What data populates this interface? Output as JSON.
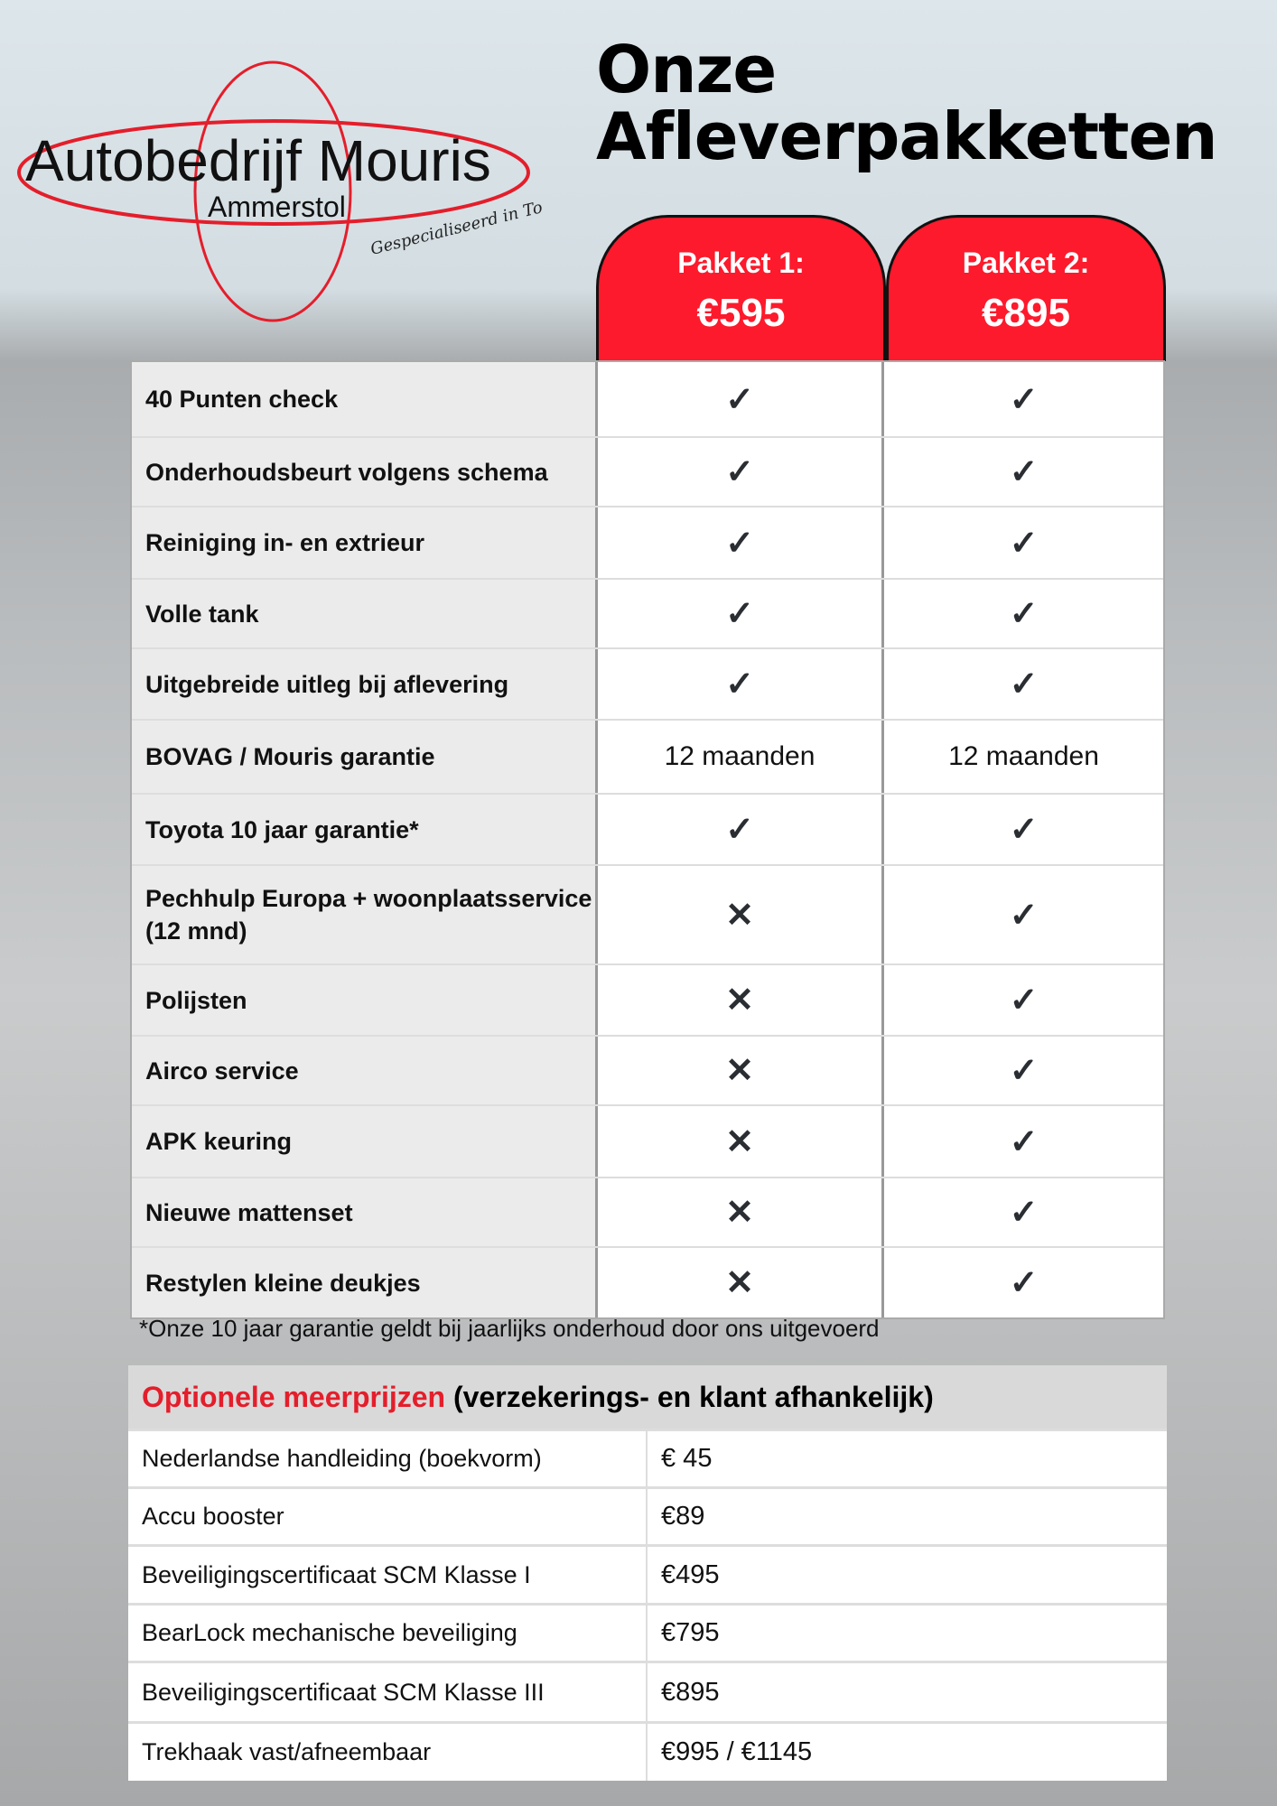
{
  "logo": {
    "name": "Autobedrijf Mouris",
    "place": "Ammerstol",
    "tagline": "Gespecialiseerd in Toyota"
  },
  "title": {
    "line1": "Onze",
    "line2": "Afleverpakketten"
  },
  "packages": [
    {
      "label": "Pakket 1:",
      "price": "€595"
    },
    {
      "label": "Pakket 2:",
      "price": "€895"
    }
  ],
  "icons": {
    "yes": "check-icon",
    "no": "cross-icon"
  },
  "colors": {
    "accent": "#fc1a2c"
  },
  "rows": [
    {
      "label": "40 Punten check",
      "p1": "✓",
      "p2": "✓"
    },
    {
      "label": "Onderhoudsbeurt volgens schema",
      "p1": "✓",
      "p2": "✓"
    },
    {
      "label": "Reiniging in- en extrieur",
      "p1": "✓",
      "p2": "✓"
    },
    {
      "label": "Volle tank",
      "p1": "✓",
      "p2": "✓"
    },
    {
      "label": "Uitgebreide uitleg bij aflevering",
      "p1": "✓",
      "p2": "✓"
    },
    {
      "label": "BOVAG / Mouris garantie",
      "p1": "12 maanden",
      "p2": "12 maanden"
    },
    {
      "label": "Toyota 10 jaar garantie*",
      "p1": "✓",
      "p2": "✓"
    },
    {
      "label": "Pechhulp Europa + woonplaatsservice (12 mnd)",
      "p1": "✕",
      "p2": "✓"
    },
    {
      "label": "Polijsten",
      "p1": "✕",
      "p2": "✓"
    },
    {
      "label": "Airco service",
      "p1": "✕",
      "p2": "✓"
    },
    {
      "label": "APK keuring",
      "p1": "✕",
      "p2": "✓"
    },
    {
      "label": "Nieuwe mattenset",
      "p1": "✕",
      "p2": "✓"
    },
    {
      "label": "Restylen kleine deukjes",
      "p1": "✕",
      "p2": "✓"
    }
  ],
  "footnote": "*Onze 10 jaar garantie geldt bij jaarlijks onderhoud door ons uitgevoerd",
  "optional": {
    "title_red": "Optionele meerprijzen",
    "title_rest": "(verzekerings- en klant afhankelijk)",
    "items": [
      {
        "name": "Nederlandse handleiding (boekvorm)",
        "price": "€ 45"
      },
      {
        "name": "Accu booster",
        "price": "€89"
      },
      {
        "name": "Beveiligingscertificaat SCM Klasse I",
        "price": "€495"
      },
      {
        "name": "BearLock mechanische beveiliging",
        "price": "€795"
      },
      {
        "name": "Beveiligingscertificaat SCM Klasse III",
        "price": "€895"
      },
      {
        "name": "Trekhaak vast/afneembaar",
        "price": "€995 / €1145"
      }
    ]
  }
}
